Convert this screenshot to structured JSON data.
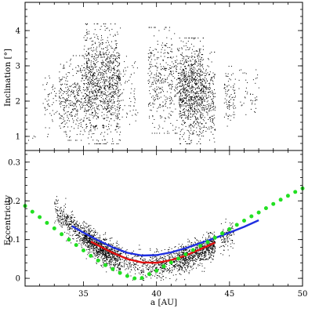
{
  "chart_data": [
    {
      "type": "scatter",
      "panel": "top",
      "xlabel": "",
      "ylabel": "Inclination [°]",
      "xlim": [
        31,
        50
      ],
      "ylim": [
        0.6,
        4.8
      ],
      "yticks": [
        1,
        2,
        3,
        4
      ],
      "xticks": [
        35,
        40,
        45,
        50
      ],
      "grid": false,
      "series": [
        {
          "kind": "scatter",
          "color": "#000000",
          "clusters": [
            {
              "a_min": 31.2,
              "a_max": 31.8,
              "i_min": 0.9,
              "i_max": 1.1,
              "count": 4
            },
            {
              "a_min": 32.2,
              "a_max": 33.2,
              "i_min": 1.0,
              "i_max": 3.1,
              "count": 50
            },
            {
              "a_min": 33.3,
              "a_max": 35.0,
              "i_min": 0.9,
              "i_max": 3.3,
              "count": 320
            },
            {
              "a_min": 35.0,
              "a_max": 37.5,
              "i_min": 0.8,
              "i_max": 4.2,
              "count": 1100
            },
            {
              "a_min": 37.5,
              "a_max": 38.7,
              "i_min": 1.2,
              "i_max": 3.4,
              "count": 60
            },
            {
              "a_min": 39.4,
              "a_max": 41.5,
              "i_min": 1.1,
              "i_max": 4.1,
              "count": 380
            },
            {
              "a_min": 41.5,
              "a_max": 43.2,
              "i_min": 0.8,
              "i_max": 3.8,
              "count": 900
            },
            {
              "a_min": 43.2,
              "a_max": 44.0,
              "i_min": 0.8,
              "i_max": 3.4,
              "count": 200
            },
            {
              "a_min": 44.6,
              "a_max": 45.4,
              "i_min": 1.3,
              "i_max": 3.0,
              "count": 90
            },
            {
              "a_min": 45.6,
              "a_max": 47.0,
              "i_min": 1.4,
              "i_max": 2.9,
              "count": 45
            }
          ]
        }
      ]
    },
    {
      "type": "scatter",
      "panel": "bottom",
      "xlabel": "a [AU]",
      "ylabel": "Eccentricity",
      "xlim": [
        31,
        50
      ],
      "ylim": [
        -0.02,
        0.33
      ],
      "yticks": [
        0,
        0.1,
        0.2,
        0.3
      ],
      "xticks": [
        35,
        40,
        45,
        50
      ],
      "grid": false,
      "series": [
        {
          "kind": "scatter",
          "color": "#000000",
          "band_center": [
            [
              33.0,
              0.18
            ],
            [
              34.0,
              0.14
            ],
            [
              35.0,
              0.11
            ],
            [
              36.0,
              0.08
            ],
            [
              37.0,
              0.06
            ],
            [
              38.0,
              0.045
            ],
            [
              39.0,
              0.035
            ],
            [
              40.0,
              0.035
            ],
            [
              41.0,
              0.045
            ],
            [
              42.0,
              0.055
            ],
            [
              43.0,
              0.07
            ],
            [
              44.0,
              0.09
            ],
            [
              45.0,
              0.11
            ]
          ],
          "count": 2600
        },
        {
          "kind": "line",
          "color": "#1f2fe0",
          "x": [
            34.2,
            35,
            36,
            37,
            38,
            39,
            40,
            41,
            42,
            43,
            44,
            45,
            46,
            47
          ],
          "y": [
            0.135,
            0.118,
            0.098,
            0.08,
            0.066,
            0.059,
            0.06,
            0.067,
            0.078,
            0.091,
            0.104,
            0.118,
            0.133,
            0.15
          ]
        },
        {
          "kind": "line",
          "color": "#e01010",
          "x": [
            35.5,
            36,
            37,
            38,
            39,
            40,
            41,
            42,
            43,
            44
          ],
          "y": [
            0.095,
            0.085,
            0.066,
            0.05,
            0.041,
            0.04,
            0.047,
            0.059,
            0.075,
            0.092
          ]
        },
        {
          "kind": "dotted",
          "color": "#22e022",
          "x": [
            31.0,
            31.5,
            32.0,
            32.5,
            33.0,
            33.5,
            34.0,
            34.5,
            35.0,
            35.5,
            36.0,
            36.5,
            37.0,
            37.5,
            38.0,
            38.5,
            39.0,
            39.5,
            40.0,
            40.5,
            41.0,
            41.5,
            42.0,
            42.5,
            43.0,
            43.5,
            44.0,
            44.5,
            45.0,
            45.5,
            46.0,
            46.5,
            47.0,
            47.5,
            48.0,
            48.5,
            49.0,
            49.5,
            50.0
          ],
          "y": [
            0.187,
            0.172,
            0.158,
            0.143,
            0.129,
            0.114,
            0.1,
            0.086,
            0.072,
            0.058,
            0.046,
            0.034,
            0.024,
            0.014,
            0.006,
            0.0,
            0.001,
            0.011,
            0.02,
            0.031,
            0.041,
            0.051,
            0.062,
            0.073,
            0.084,
            0.094,
            0.105,
            0.116,
            0.127,
            0.138,
            0.149,
            0.16,
            0.17,
            0.181,
            0.192,
            0.203,
            0.213,
            0.223,
            0.232
          ]
        }
      ]
    }
  ]
}
